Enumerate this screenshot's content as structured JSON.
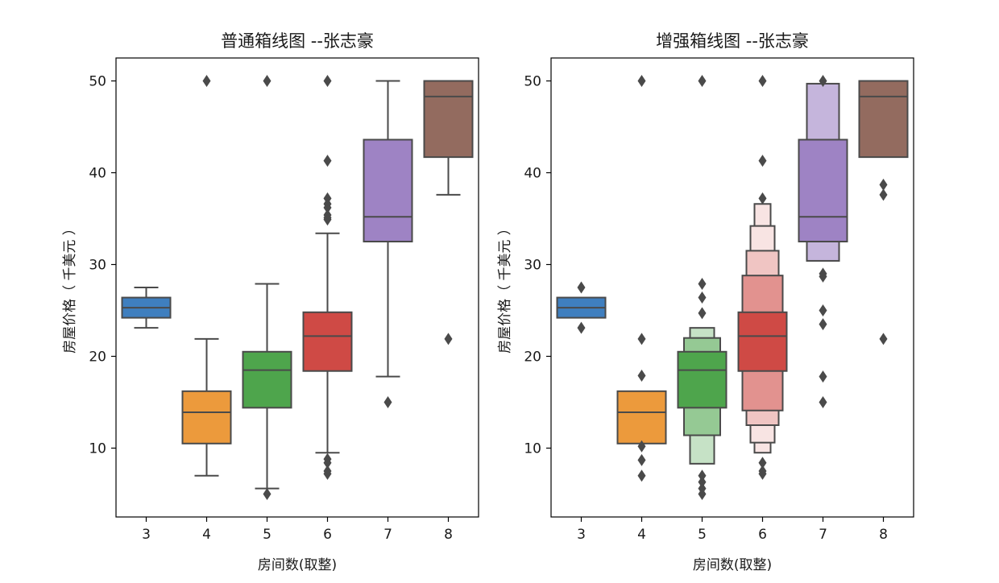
{
  "chart_data": [
    {
      "type": "boxplot",
      "title": "普通箱线图 --张志豪",
      "xlabel": "房间数(取整)",
      "ylabel": "房屋价格（ 千美元 ）",
      "ylim": [
        2.5,
        52.5
      ],
      "yticks": [
        10,
        20,
        30,
        40,
        50
      ],
      "categories": [
        "3",
        "4",
        "5",
        "6",
        "7",
        "8"
      ],
      "colors": [
        "#3f7fbf",
        "#ec9a3c",
        "#4ea54c",
        "#cf4a45",
        "#9e83c4",
        "#936b5f"
      ],
      "boxes": [
        {
          "category": "3",
          "whislo": 23.1,
          "q1": 24.2,
          "med": 25.3,
          "q3": 26.4,
          "whishi": 27.5,
          "fliers": []
        },
        {
          "category": "4",
          "whislo": 7.0,
          "q1": 10.5,
          "med": 13.9,
          "q3": 16.2,
          "whishi": 21.9,
          "fliers": [
            50.0
          ]
        },
        {
          "category": "5",
          "whislo": 5.6,
          "q1": 14.4,
          "med": 18.5,
          "q3": 20.5,
          "whishi": 27.9,
          "fliers": [
            50.0,
            5.0
          ]
        },
        {
          "category": "6",
          "whislo": 9.5,
          "q1": 18.4,
          "med": 22.2,
          "q3": 24.8,
          "whishi": 33.4,
          "fliers": [
            50.0,
            41.3,
            37.2,
            36.6,
            36.2,
            35.4,
            35.1,
            34.9,
            8.8,
            8.4,
            7.5,
            7.2
          ]
        },
        {
          "category": "7",
          "whislo": 17.8,
          "q1": 32.5,
          "med": 35.2,
          "q3": 43.6,
          "whishi": 50.0,
          "fliers": [
            15.0
          ]
        },
        {
          "category": "8",
          "whislo": 37.6,
          "q1": 41.7,
          "med": 48.3,
          "q3": 50.0,
          "whishi": 50.0,
          "fliers": [
            21.9
          ]
        }
      ]
    },
    {
      "type": "boxenplot",
      "title": "增强箱线图 --张志豪",
      "xlabel": "房间数(取整)",
      "ylabel": "房屋价格（ 千美元 ）",
      "ylim": [
        2.5,
        52.5
      ],
      "yticks": [
        10,
        20,
        30,
        40,
        50
      ],
      "categories": [
        "3",
        "4",
        "5",
        "6",
        "7",
        "8"
      ],
      "colors": [
        "#3f7fbf",
        "#ec9a3c",
        "#4ea54c",
        "#cf4a45",
        "#9e83c4",
        "#936b5f"
      ],
      "boxes": [
        {
          "category": "3",
          "med": 25.3,
          "levels": [
            [
              24.2,
              26.4
            ]
          ],
          "outliers": [
            27.5,
            23.1
          ]
        },
        {
          "category": "4",
          "med": 13.9,
          "levels": [
            [
              10.5,
              16.2
            ]
          ],
          "outliers": [
            50.0,
            21.9,
            17.9,
            10.2,
            8.7,
            7.0
          ]
        },
        {
          "category": "5",
          "med": 18.5,
          "levels": [
            [
              14.4,
              20.5
            ],
            [
              11.4,
              22.0
            ],
            [
              8.3,
              23.1
            ]
          ],
          "outliers": [
            50.0,
            27.9,
            26.4,
            24.7,
            7.0,
            6.3,
            5.6,
            5.0
          ]
        },
        {
          "category": "6",
          "med": 22.2,
          "levels": [
            [
              18.4,
              24.8
            ],
            [
              14.1,
              28.8
            ],
            [
              12.5,
              31.5
            ],
            [
              10.6,
              34.2
            ],
            [
              9.5,
              36.6
            ]
          ],
          "outliers": [
            50.0,
            41.3,
            37.2,
            8.4,
            7.5,
            7.2
          ]
        },
        {
          "category": "7",
          "med": 35.2,
          "levels": [
            [
              32.5,
              43.6
            ],
            [
              30.4,
              49.7
            ]
          ],
          "outliers": [
            50.0,
            29.0,
            28.7,
            25.0,
            23.5,
            17.8,
            15.0
          ]
        },
        {
          "category": "8",
          "med": 48.3,
          "levels": [
            [
              41.7,
              50.0
            ]
          ],
          "outliers": [
            38.7,
            37.6,
            21.9
          ]
        }
      ]
    }
  ]
}
